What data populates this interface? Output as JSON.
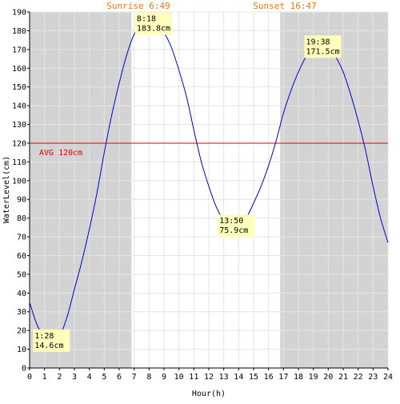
{
  "chart_data": {
    "type": "line",
    "xlabel": "Hour(h)",
    "ylabel": "WaterLevel(cm)",
    "xlim": [
      0,
      24
    ],
    "ylim": [
      0,
      190
    ],
    "x_ticks": [
      0,
      1,
      2,
      3,
      4,
      5,
      6,
      7,
      8,
      9,
      10,
      11,
      12,
      13,
      14,
      15,
      16,
      17,
      18,
      19,
      20,
      21,
      22,
      23,
      24
    ],
    "y_ticks": [
      0,
      10,
      20,
      30,
      40,
      50,
      60,
      70,
      80,
      90,
      100,
      110,
      120,
      130,
      140,
      150,
      160,
      170,
      180,
      190
    ],
    "grid": true,
    "sunrise_label": "Sunrise 6:49",
    "sunset_label": "Sunset 16:47",
    "sunrise_hour": 6.82,
    "sunset_hour": 16.78,
    "night_color": "#d3d3d3",
    "day_color": "#ffffff",
    "line_color": "#0000cc",
    "avg": {
      "value": 120,
      "label": "AVG 120cm",
      "color": "#dd0000"
    },
    "series": [
      {
        "x": [
          0,
          0.5,
          1,
          1.467,
          2,
          2.5,
          3,
          3.5,
          4,
          4.5,
          5,
          5.5,
          6,
          6.5,
          7,
          7.5,
          8,
          8.3,
          8.5,
          9,
          9.5,
          10,
          10.5,
          11,
          11.5,
          12,
          12.5,
          13,
          13.5,
          13.833,
          14,
          14.5,
          15,
          15.5,
          16,
          16.5,
          17,
          17.5,
          18,
          18.5,
          19,
          19.633,
          20,
          20.5,
          21,
          21.5,
          22,
          22.5,
          23,
          23.5,
          24
        ],
        "y": [
          35,
          23,
          16.5,
          14.6,
          17,
          27,
          42,
          57,
          74,
          93,
          115,
          135,
          152,
          167,
          178,
          182,
          183.6,
          183.8,
          183.5,
          179,
          171,
          159,
          145,
          127,
          110,
          97,
          86,
          79,
          76,
          75.9,
          76,
          80,
          88,
          97,
          108,
          121,
          136,
          148,
          158,
          166,
          171,
          171.5,
          170.5,
          166,
          158,
          146,
          132,
          116,
          97,
          80,
          67
        ]
      }
    ],
    "annotations": [
      {
        "time": "1:28",
        "value": "14.6cm",
        "x": 1.467,
        "y": 14.6
      },
      {
        "time": "8:18",
        "value": "183.8cm",
        "x": 8.3,
        "y": 183.8
      },
      {
        "time": "13:50",
        "value": "75.9cm",
        "x": 13.833,
        "y": 75.9
      },
      {
        "time": "19:38",
        "value": "171.5cm",
        "x": 19.633,
        "y": 171.5
      }
    ],
    "annotation_bg": "#ffffbb"
  }
}
